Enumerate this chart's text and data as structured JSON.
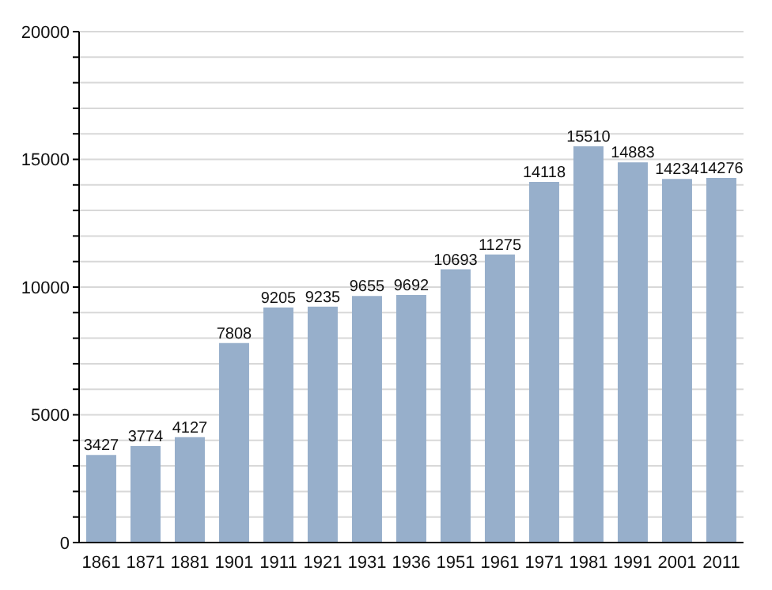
{
  "chart_data": {
    "type": "bar",
    "categories": [
      "1861",
      "1871",
      "1881",
      "1901",
      "1911",
      "1921",
      "1931",
      "1936",
      "1951",
      "1961",
      "1971",
      "1981",
      "1991",
      "2001",
      "2011"
    ],
    "values": [
      3427,
      3774,
      4127,
      7808,
      9205,
      9235,
      9655,
      9692,
      10693,
      11275,
      14118,
      15510,
      14883,
      14234,
      14276
    ],
    "color": "#97afcb",
    "ylim": [
      0,
      20000
    ],
    "yticks": [
      0,
      {
        "value": 1000,
        "label": null
      },
      {
        "value": 2000,
        "label": null
      },
      {
        "value": 3000,
        "label": null
      },
      {
        "value": 4000,
        "label": null
      },
      5000,
      {
        "value": 6000,
        "label": null
      },
      {
        "value": 7000,
        "label": null
      },
      {
        "value": 8000,
        "label": null
      },
      {
        "value": 9000,
        "label": null
      },
      10000,
      {
        "value": 11000,
        "label": null
      },
      {
        "value": 12000,
        "label": null
      },
      {
        "value": 13000,
        "label": null
      },
      {
        "value": 14000,
        "label": null
      },
      15000,
      {
        "value": 16000,
        "label": null
      },
      {
        "value": 17000,
        "label": null
      },
      {
        "value": 18000,
        "label": null
      },
      {
        "value": 19000,
        "label": null
      },
      20000
    ],
    "grid": "y",
    "data_labels": true
  }
}
